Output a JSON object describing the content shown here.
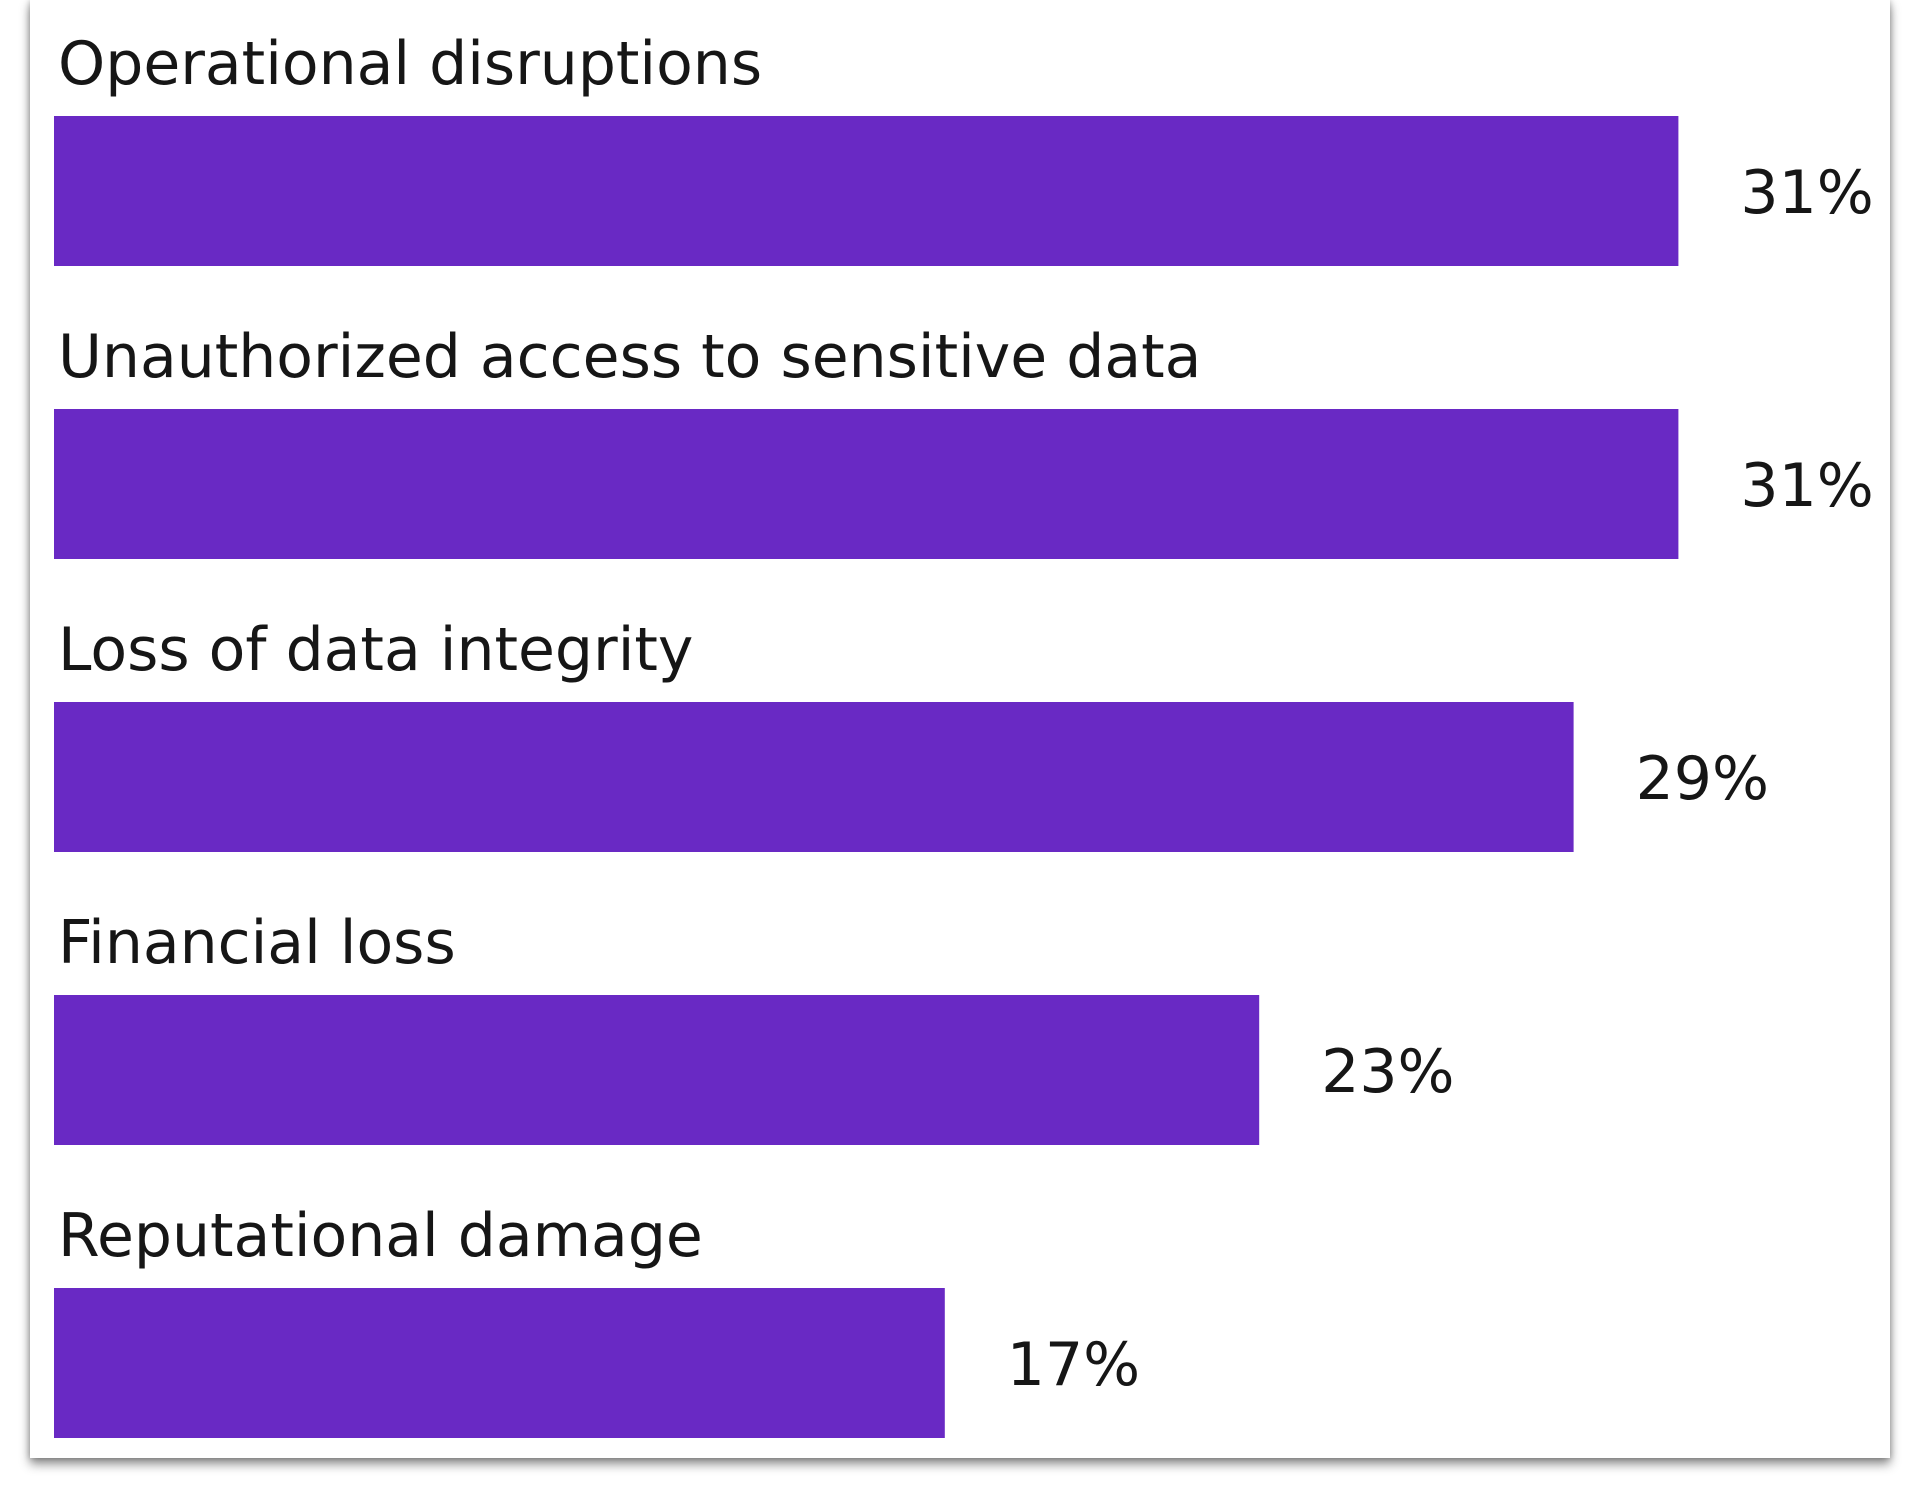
{
  "chart_data": {
    "type": "bar",
    "orientation": "horizontal",
    "categories": [
      "Operational disruptions",
      "Unauthorized access to sensitive data",
      "Loss of data integrity",
      "Financial loss",
      "Reputational damage"
    ],
    "values": [
      31,
      31,
      29,
      23,
      17
    ],
    "value_labels": [
      "31%",
      "31%",
      "29%",
      "23%",
      "17%"
    ],
    "unit": "%",
    "bar_color": "#6929c4",
    "title": "",
    "xlabel": "",
    "ylabel": "",
    "grid": false,
    "legend": "none"
  }
}
